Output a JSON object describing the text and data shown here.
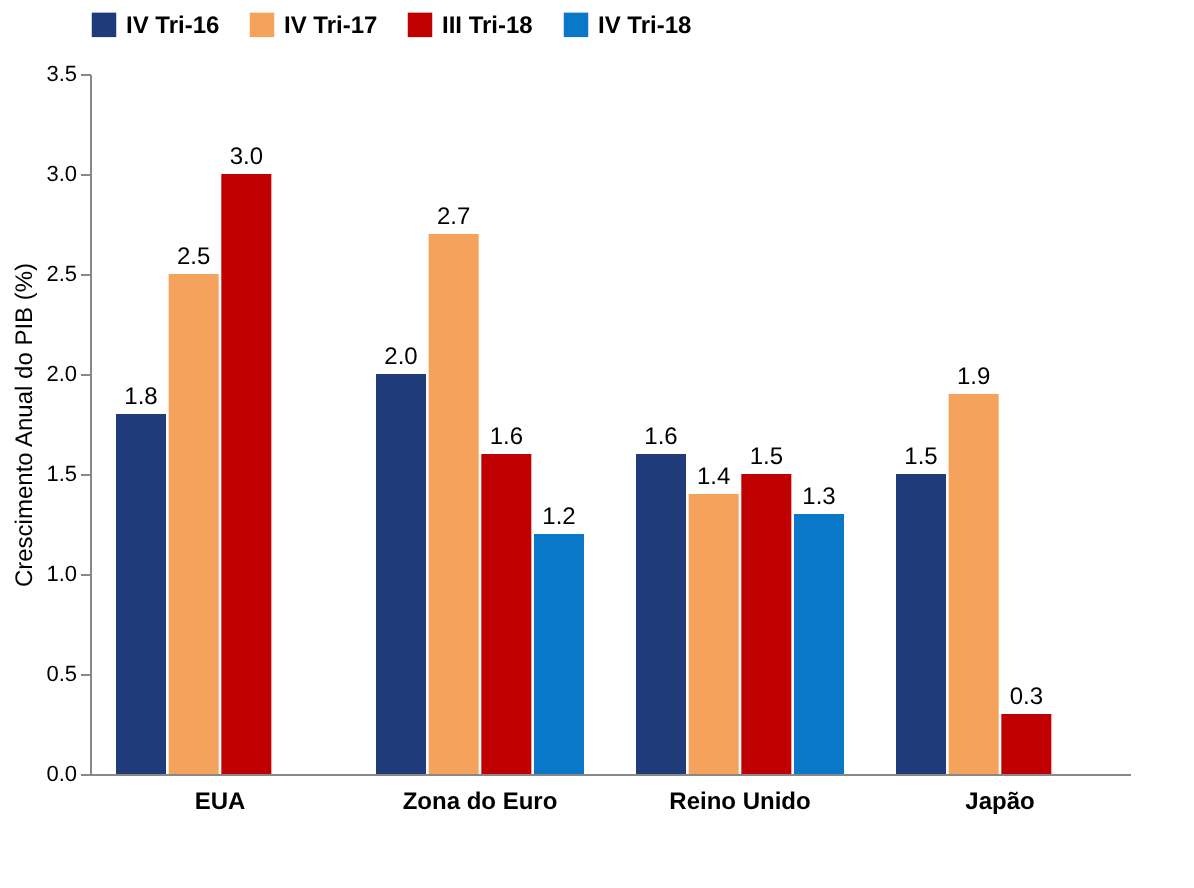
{
  "chart_data": {
    "type": "bar",
    "ylabel": "Crescimento Anual do PIB (%)",
    "categories": [
      "EUA",
      "Zona do Euro",
      "Reino Unido",
      "Japão"
    ],
    "series": [
      {
        "name": "IV Tri-16",
        "color": "#1f3b7a",
        "values": [
          1.8,
          2.0,
          1.6,
          1.5
        ],
        "value_labels": [
          "1.8",
          "2.0",
          "1.6",
          "1.5"
        ]
      },
      {
        "name": "IV Tri-17",
        "color": "#f5a25d",
        "values": [
          2.5,
          2.7,
          1.4,
          1.9
        ],
        "value_labels": [
          "2.5",
          "2.7",
          "1.4",
          "1.9"
        ]
      },
      {
        "name": "III Tri-18",
        "color": "#c00000",
        "values": [
          3.0,
          1.6,
          1.5,
          0.3
        ],
        "value_labels": [
          "3.0",
          "1.6",
          "1.5",
          "0.3"
        ]
      },
      {
        "name": "IV Tri-18",
        "color": "#0a78c8",
        "values": [
          null,
          1.2,
          1.3,
          null
        ],
        "value_labels": [
          null,
          "1.2",
          "1.3",
          null
        ]
      }
    ],
    "ylim": [
      0,
      3.5
    ],
    "yticks": [
      {
        "value": 0,
        "label": "0.0"
      },
      0.5,
      {
        "value": 1,
        "label": "1.0"
      },
      1.5,
      {
        "value": 2,
        "label": "2.0"
      },
      2.5,
      {
        "value": 3,
        "label": "3.0"
      },
      3.5
    ],
    "legend": "top",
    "grid": false
  }
}
